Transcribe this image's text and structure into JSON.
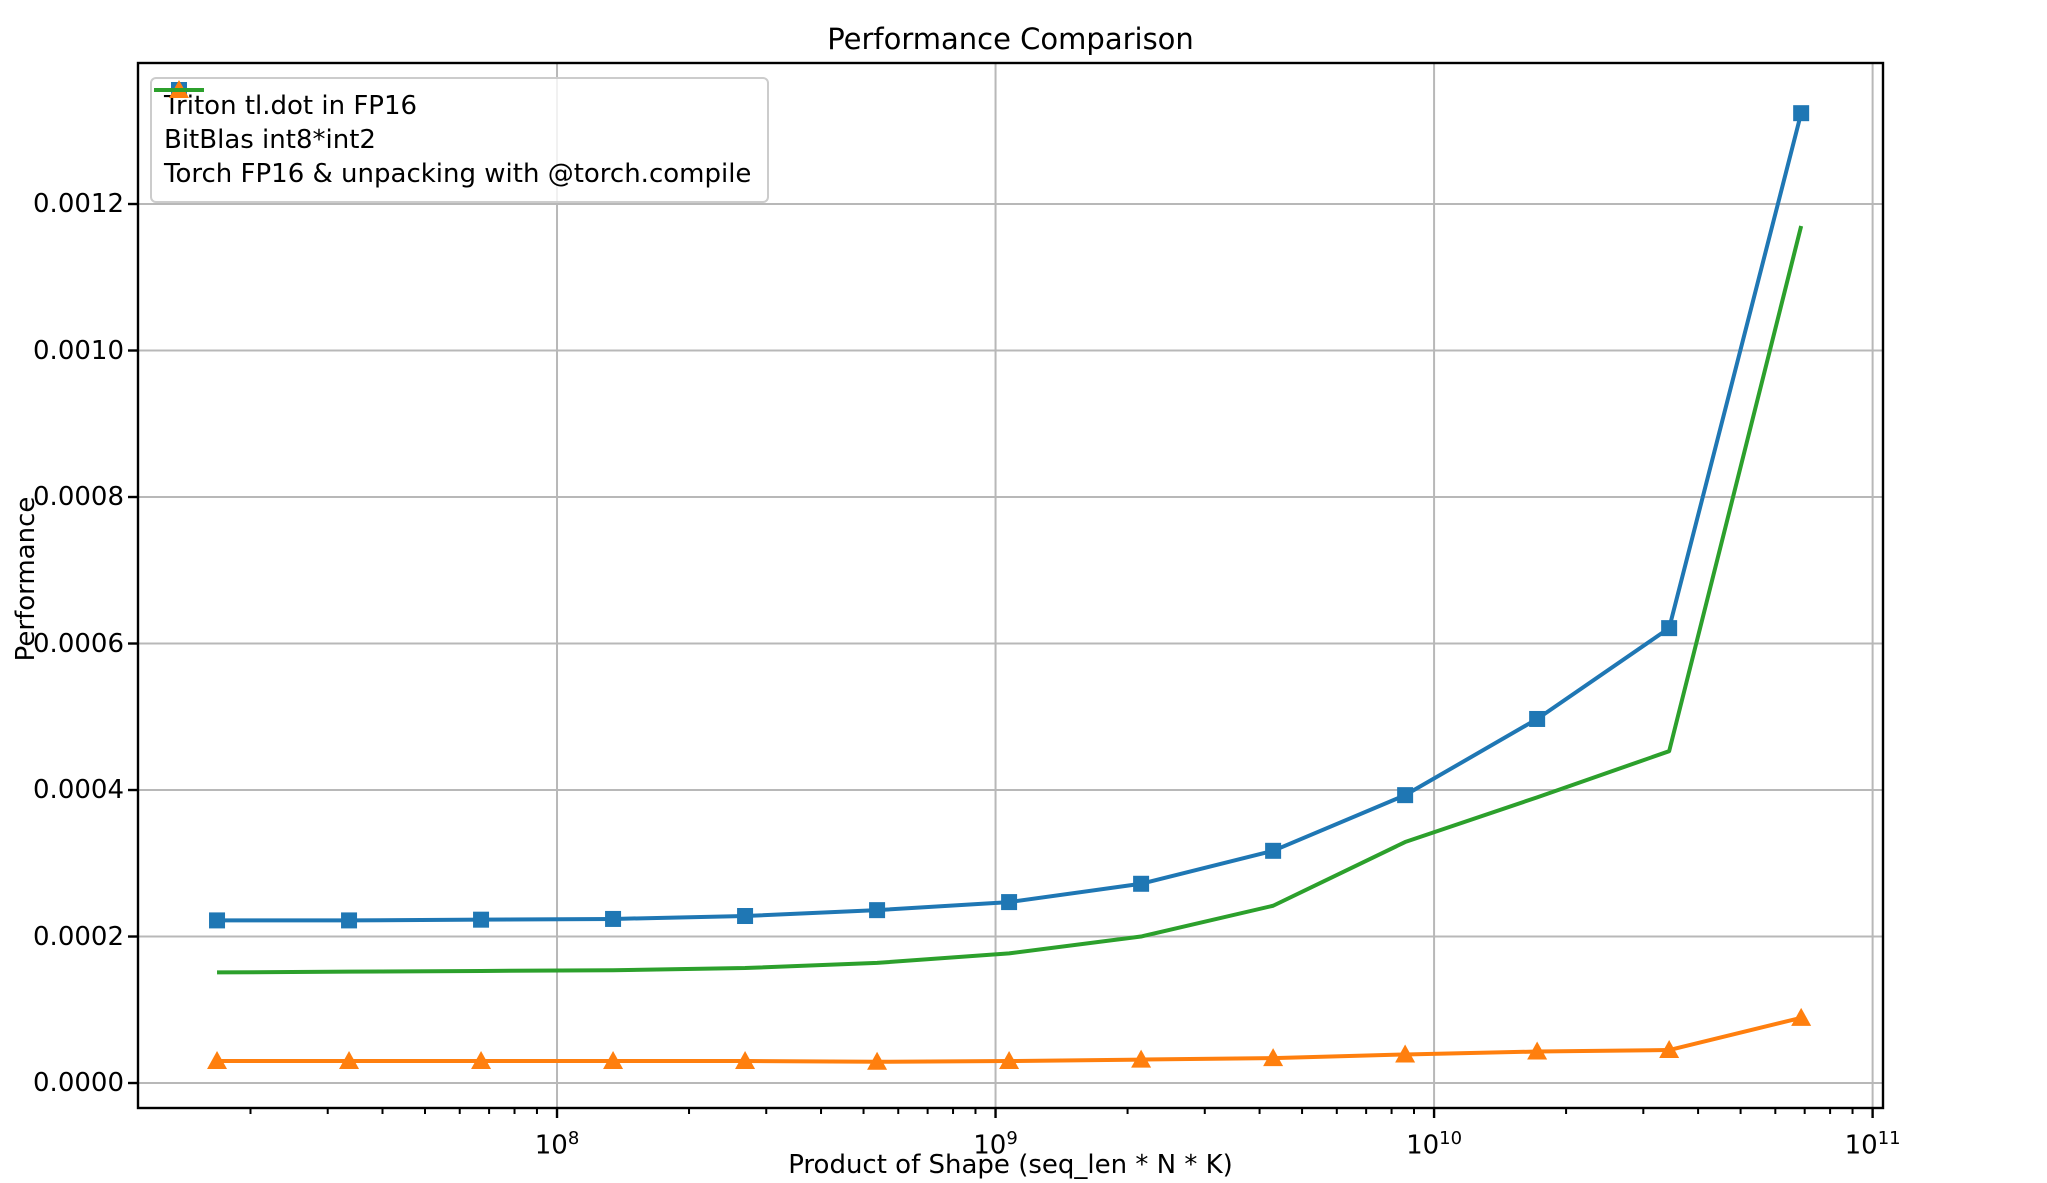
{
  "chart_data": {
    "type": "line",
    "title": "Performance Comparison",
    "xlabel": "Product of Shape (seq_len * N * K)",
    "ylabel": "Performance",
    "grid": true,
    "legend_position": "upper left",
    "axes": {
      "x_scale": "log",
      "xlim_log10": [
        7.0445,
        11.0237
      ],
      "ylim": [
        -3.41e-05,
        0.0013925
      ],
      "x_major_tick_base": "10",
      "x_major_tick_exponents": [
        8,
        9,
        10,
        11
      ],
      "y_ticks": [
        0.0,
        0.0002,
        0.0004,
        0.0006,
        0.0008,
        0.001,
        0.0012
      ],
      "y_tick_labels": [
        "0.0000",
        "0.0002",
        "0.0004",
        "0.0006",
        "0.0008",
        "0.0010",
        "0.0012"
      ]
    },
    "x": [
      16777216,
      33554432,
      67108864,
      134217728,
      268435456,
      536870912,
      1073741824,
      2147483648,
      4294967296,
      8589934592,
      17179869184,
      34359738368,
      68719476736
    ],
    "series": [
      {
        "name": "Triton tl.dot in FP16",
        "color": "#1f77b4",
        "marker": "square",
        "values": [
          0.000222,
          0.000222,
          0.000223,
          0.000224,
          0.000228,
          0.000236,
          0.000247,
          0.000272,
          0.000317,
          0.000393,
          0.000497,
          0.000621,
          0.001324
        ]
      },
      {
        "name": "BitBlas int8*int2",
        "color": "#ff7f0e",
        "marker": "triangle",
        "values": [
          3e-05,
          3e-05,
          3e-05,
          3e-05,
          3e-05,
          2.9e-05,
          3e-05,
          3.2e-05,
          3.4e-05,
          3.9e-05,
          4.3e-05,
          4.5e-05,
          8.9e-05
        ]
      },
      {
        "name": "Torch FP16 & unpacking with @torch.compile",
        "color": "#2ca02c",
        "marker": "none",
        "values": [
          0.000151,
          0.000152,
          0.000153,
          0.000154,
          0.000157,
          0.000164,
          0.000177,
          0.0002,
          0.000242,
          0.000329,
          0.00039,
          0.000453,
          0.00117
        ]
      }
    ]
  }
}
